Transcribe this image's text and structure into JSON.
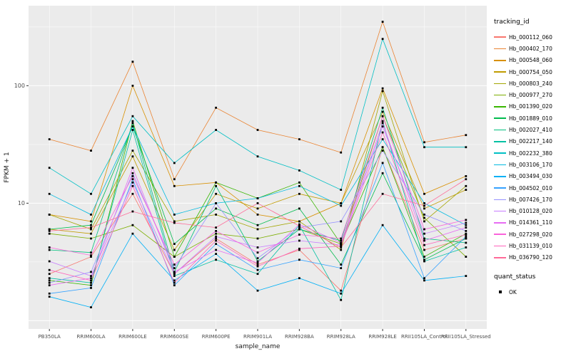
{
  "chart_data": {
    "type": "line",
    "title": "",
    "xlabel": "sample_name",
    "ylabel": "FPKM + 1",
    "y_scale": "log10",
    "ylim": [
      0.85,
      480
    ],
    "y_major_ticks": [
      10,
      100
    ],
    "y_major_gridlines": [
      1,
      10,
      100
    ],
    "y_minor_gridlines": [
      3.162,
      31.62,
      316.2
    ],
    "panel_bg": "#EBEBEB",
    "grid_color": "#FFFFFF",
    "point_color": "#000000",
    "axis_text_color": "#4D4D4D",
    "axis_title_color": "#1a1a1a",
    "categories": [
      "PB350LA",
      "RRIM600LA",
      "RRIM600LE",
      "RRIM600SE",
      "RRIM600PE",
      "RRIM901LA",
      "RRIM928BA",
      "RRIM928LA",
      "RRIM928LE",
      "RRII105LA_Control",
      "RRII105LA_Stressed"
    ],
    "series": [
      {
        "name": "Hb_000112_060",
        "color": "#F8766D",
        "values": [
          2.5,
          3.5,
          12,
          2.5,
          5,
          3,
          4,
          1.8,
          30,
          4,
          5
        ]
      },
      {
        "name": "Hb_000402_170",
        "color": "#EA8331",
        "values": [
          35,
          28,
          160,
          16,
          65,
          42,
          35,
          27,
          350,
          33,
          38
        ]
      },
      {
        "name": "Hb_000548_060",
        "color": "#D89000",
        "values": [
          8,
          7,
          100,
          14,
          15,
          8,
          7,
          10,
          95,
          12,
          17
        ]
      },
      {
        "name": "Hb_000754_050",
        "color": "#C09B00",
        "values": [
          6,
          5.5,
          25,
          4,
          12,
          9,
          12,
          10,
          60,
          9,
          13
        ]
      },
      {
        "name": "Hb_000803_240",
        "color": "#A3A500",
        "values": [
          8,
          6,
          28,
          7,
          8,
          6,
          7,
          4,
          90,
          7,
          14
        ]
      },
      {
        "name": "Hb_000977_270",
        "color": "#7CAE00",
        "values": [
          5.5,
          5,
          6.5,
          3.5,
          5.5,
          5,
          6,
          4.5,
          55,
          7.5,
          3.5
        ]
      },
      {
        "name": "Hb_001390_020",
        "color": "#39B600",
        "values": [
          2.2,
          2.0,
          50,
          3.5,
          15,
          11,
          15,
          4.5,
          30,
          3.5,
          5.5
        ]
      },
      {
        "name": "Hb_001889_010",
        "color": "#00BB4E",
        "values": [
          6,
          6.5,
          45,
          4.5,
          9,
          6.5,
          9,
          3,
          18,
          3.3,
          5
        ]
      },
      {
        "name": "Hb_002027_410",
        "color": "#00BF7D",
        "values": [
          4,
          3.8,
          48,
          2.6,
          14,
          3.2,
          6,
          4.8,
          65,
          5,
          4.6
        ]
      },
      {
        "name": "Hb_002217_140",
        "color": "#00C1A3",
        "values": [
          2.3,
          2.1,
          42,
          2.4,
          3.3,
          2.5,
          6.5,
          1.5,
          50,
          3.2,
          4.2
        ]
      },
      {
        "name": "Hb_002232_380",
        "color": "#00BFC4",
        "values": [
          20,
          12,
          55,
          22,
          42,
          25,
          19,
          13,
          250,
          30,
          30
        ]
      },
      {
        "name": "Hb_003106_170",
        "color": "#00BAE0",
        "values": [
          12,
          8,
          45,
          8,
          10,
          11,
          14,
          9.5,
          35,
          10,
          6.5
        ]
      },
      {
        "name": "Hb_003494_030",
        "color": "#00B0F6",
        "values": [
          1.6,
          1.3,
          5.5,
          2.2,
          3.7,
          1.8,
          2.3,
          1.7,
          6.5,
          2.2,
          2.4
        ]
      },
      {
        "name": "Hb_004502_010",
        "color": "#35A2FF",
        "values": [
          1.7,
          1.9,
          16,
          2.0,
          4.5,
          2.7,
          3.3,
          2.8,
          22,
          2.3,
          5.2
        ]
      },
      {
        "name": "Hb_007426_170",
        "color": "#9590FF",
        "values": [
          2.1,
          2.6,
          18,
          2.8,
          10,
          3.4,
          6.2,
          7,
          28,
          8,
          5.8
        ]
      },
      {
        "name": "Hb_010128_020",
        "color": "#C77CFF",
        "values": [
          3.2,
          2.4,
          15,
          2.5,
          5.2,
          4.2,
          4.8,
          4.4,
          45,
          5.5,
          6.8
        ]
      },
      {
        "name": "Hb_014361_110",
        "color": "#E76BF3",
        "values": [
          2.0,
          2.3,
          20,
          2.6,
          4.0,
          3.1,
          6.6,
          4.6,
          48,
          4.8,
          6.2
        ]
      },
      {
        "name": "Hb_027298_020",
        "color": "#FA62DB",
        "values": [
          4.2,
          3.6,
          17,
          3.0,
          5.8,
          3.8,
          5.4,
          5.0,
          55,
          6.0,
          7.2
        ]
      },
      {
        "name": "Hb_031139_010",
        "color": "#FF62BC",
        "values": [
          2.7,
          2.2,
          14,
          2.1,
          4.8,
          2.9,
          4.1,
          4.3,
          40,
          4.4,
          5.4
        ]
      },
      {
        "name": "Hb_036790_120",
        "color": "#FF6A98",
        "values": [
          5.8,
          6.2,
          8.5,
          6.8,
          6.2,
          10,
          6.4,
          4.2,
          12,
          9.5,
          16
        ]
      }
    ]
  },
  "legend": {
    "tracking_title": "tracking_id",
    "quant_title": "quant_status",
    "quant_items": [
      {
        "label": "OK"
      }
    ]
  }
}
